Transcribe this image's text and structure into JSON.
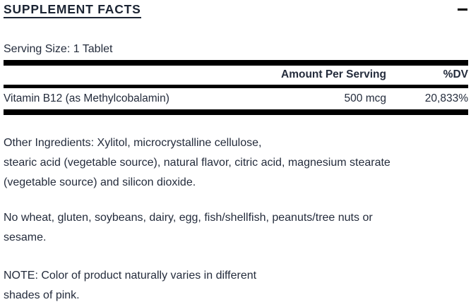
{
  "section": {
    "title": "SUPPLEMENT FACTS"
  },
  "serving": {
    "label": "Serving Size: 1 Tablet"
  },
  "table": {
    "headers": {
      "amount": "Amount Per Serving",
      "dv": "%DV"
    },
    "rows": [
      {
        "name": "Vitamin B12 (as Methylcobalamin)",
        "amount": "500 mcg",
        "dv": "20,833%"
      }
    ]
  },
  "paragraphs": {
    "other_ingredients": {
      "lines": [
        "Other Ingredients: Xylitol, microcrystalline cellulose,",
        "stearic acid (vegetable source), natural flavor, citric acid, magnesium stearate",
        "(vegetable source) and silicon dioxide."
      ]
    },
    "allergens": {
      "lines": [
        "No wheat, gluten, soybeans, dairy, egg, fish/shellfish, peanuts/tree nuts or",
        "sesame."
      ]
    },
    "note": {
      "lines": [
        "NOTE: Color of product naturally varies in different",
        "shades of pink."
      ]
    }
  },
  "colors": {
    "text": "#242c3c",
    "heading": "#1b2433",
    "bar": "#000000"
  }
}
